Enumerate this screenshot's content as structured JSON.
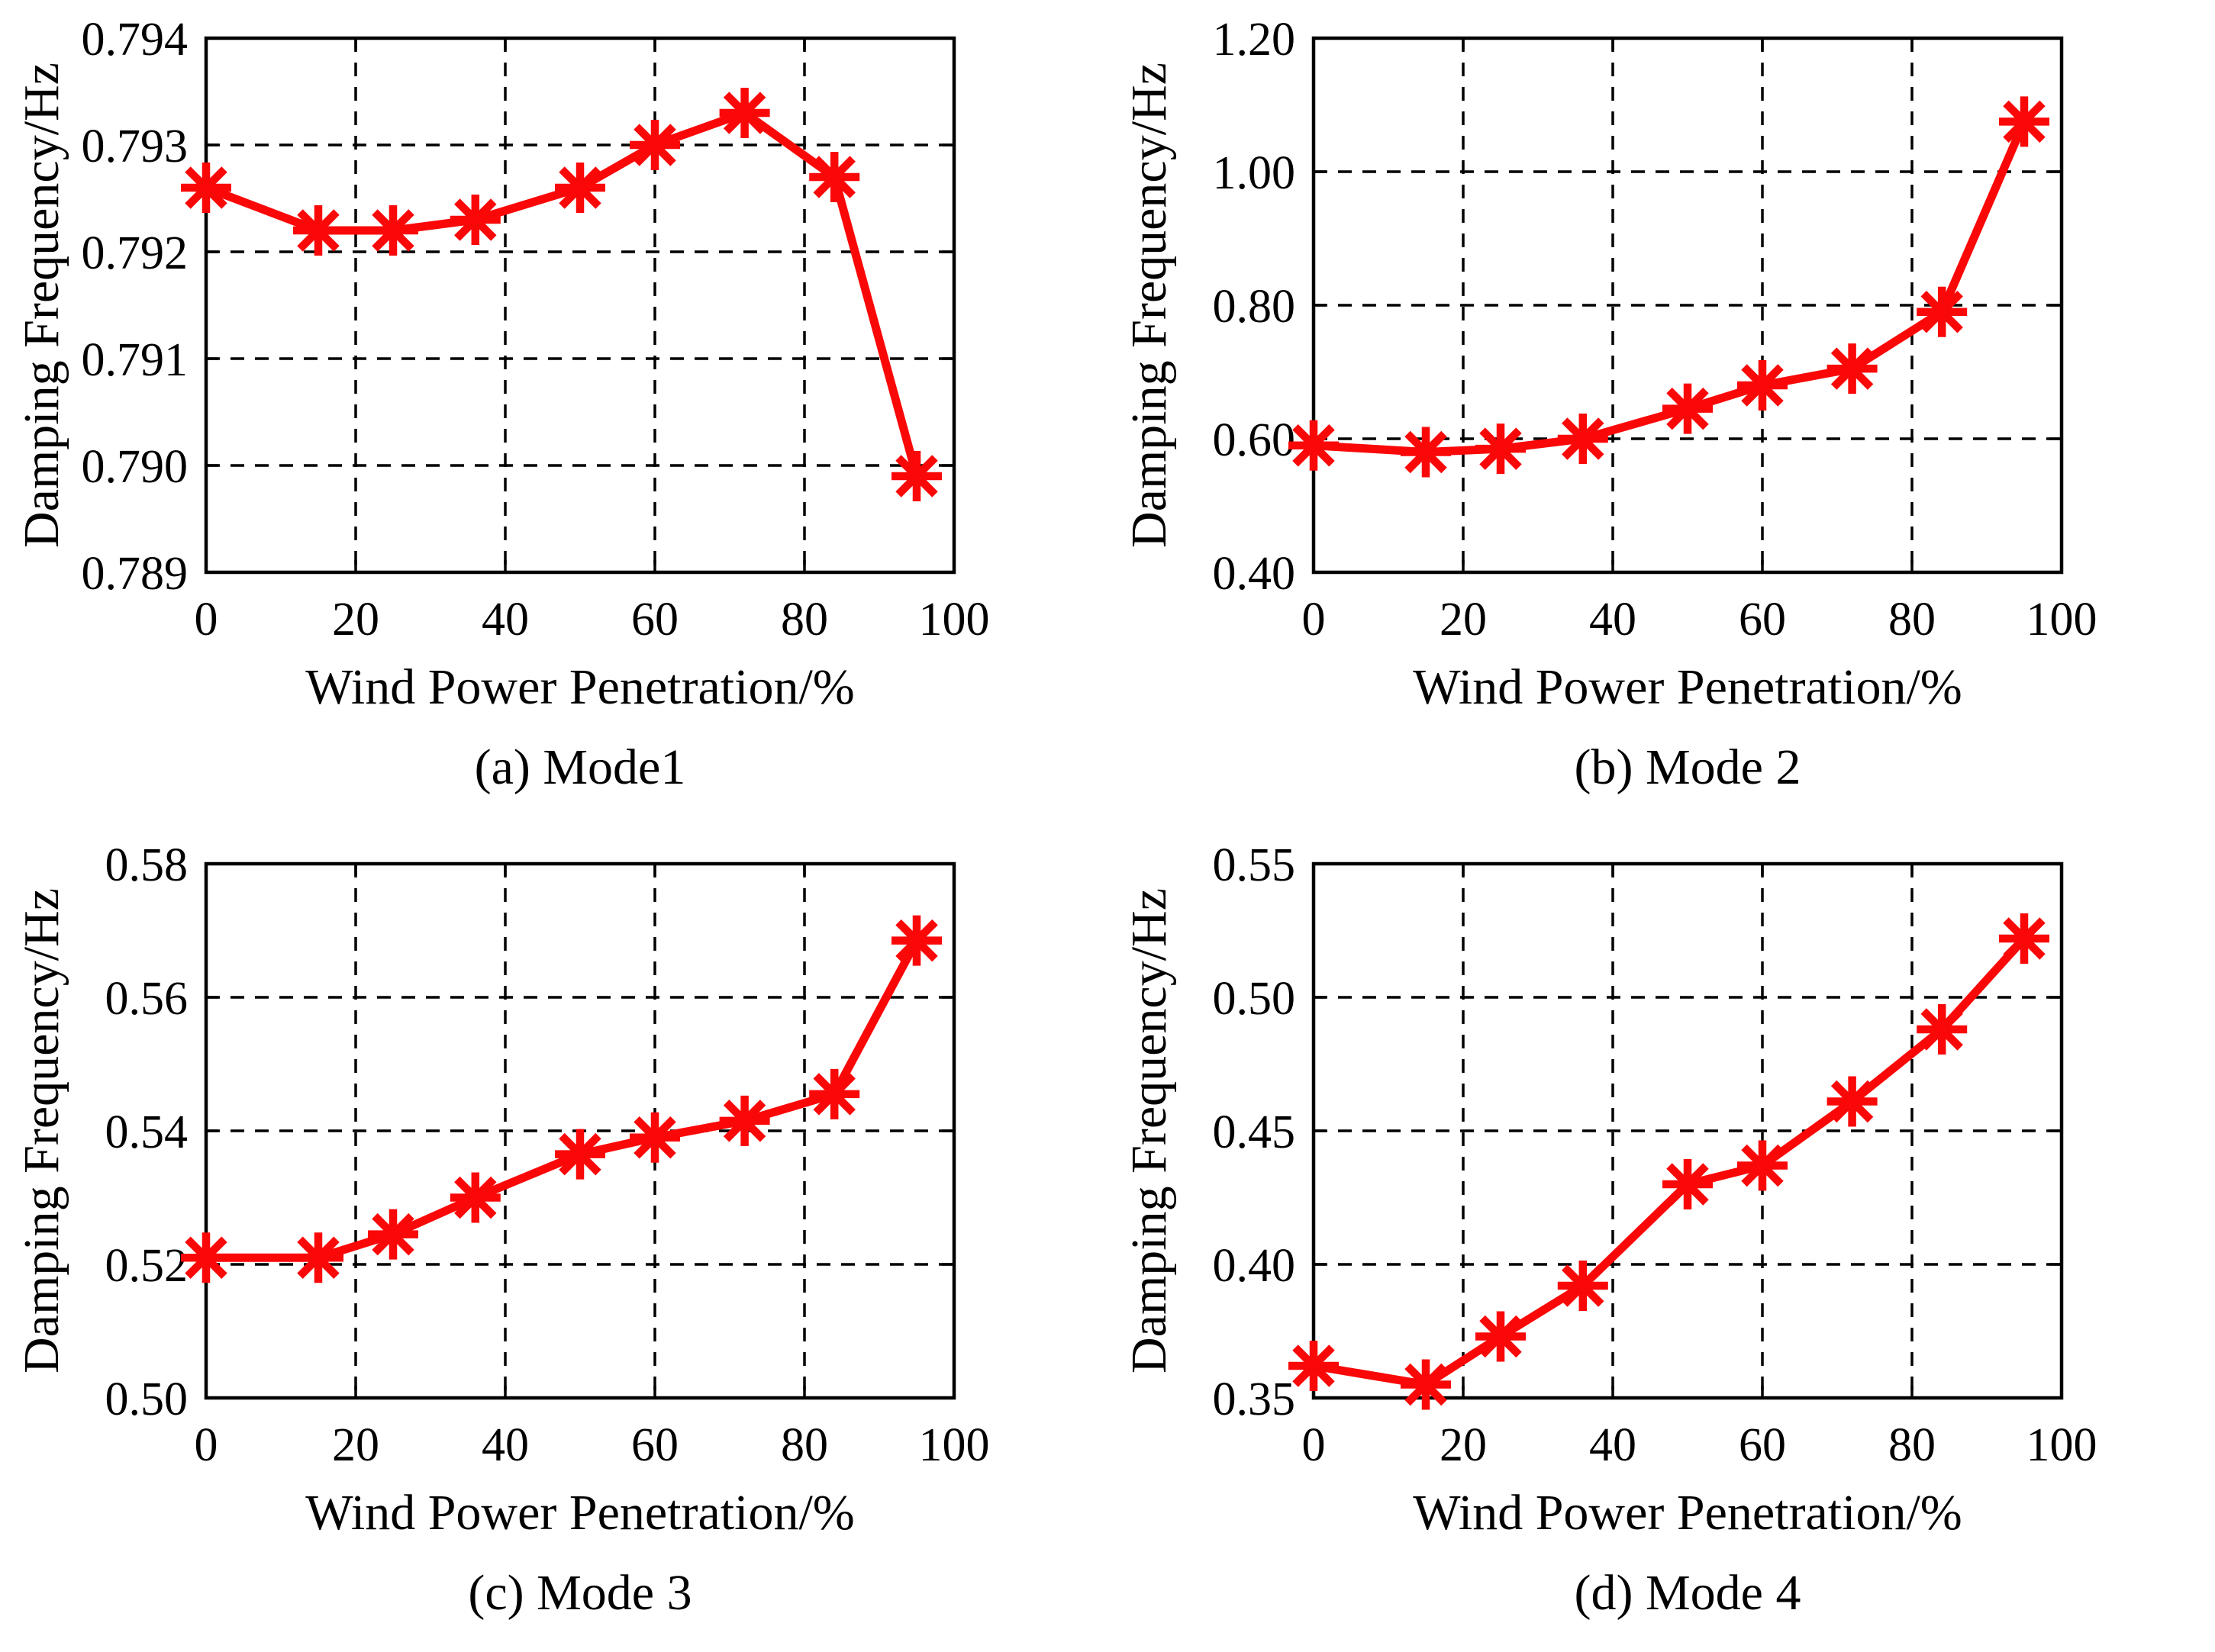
{
  "figure": {
    "background": "#ffffff",
    "text_color": "#000000",
    "series_color": "#fa0708",
    "grid_color": "#000000",
    "marker_glyph": "asterisk"
  },
  "chart_data": [
    {
      "type": "line",
      "title": "(a) Mode1",
      "xlabel": "Wind Power Penetration/%",
      "ylabel": "Damping Frequency/Hz",
      "x": [
        0,
        15,
        25,
        36,
        50,
        60,
        72,
        84,
        95
      ],
      "y": [
        0.7926,
        0.7922,
        0.7922,
        0.7923,
        0.7926,
        0.793,
        0.7933,
        0.7927,
        0.7899
      ],
      "xlim": [
        0,
        100
      ],
      "ylim": [
        0.789,
        0.794
      ],
      "xticks": [
        0,
        20,
        40,
        60,
        80,
        100
      ],
      "xtick_labels": [
        "0",
        "20",
        "40",
        "60",
        "80",
        "100"
      ],
      "yticks": [
        0.789,
        0.79,
        0.791,
        0.792,
        0.793,
        0.794
      ],
      "ytick_labels": [
        "0.789",
        "0.790",
        "0.791",
        "0.792",
        "0.793",
        "0.794"
      ],
      "grid": true,
      "legend": "none",
      "marker": "asterisk"
    },
    {
      "type": "line",
      "title": "(b) Mode 2",
      "xlabel": "Wind Power Penetration/%",
      "ylabel": "Damping Frequency/Hz",
      "x": [
        0,
        15,
        25,
        36,
        50,
        60,
        72,
        84,
        95
      ],
      "y": [
        0.59,
        0.58,
        0.585,
        0.6,
        0.645,
        0.68,
        0.705,
        0.79,
        1.075
      ],
      "xlim": [
        0,
        100
      ],
      "ylim": [
        0.4,
        1.2
      ],
      "xticks": [
        0,
        20,
        40,
        60,
        80,
        100
      ],
      "xtick_labels": [
        "0",
        "20",
        "40",
        "60",
        "80",
        "100"
      ],
      "yticks": [
        0.4,
        0.6,
        0.8,
        1.0,
        1.2
      ],
      "ytick_labels": [
        "0.40",
        "0.60",
        "0.80",
        "1.00",
        "1.20"
      ],
      "grid": true,
      "legend": "none",
      "marker": "asterisk"
    },
    {
      "type": "line",
      "title": "(c) Mode 3",
      "xlabel": "Wind Power Penetration/%",
      "ylabel": "Damping Frequency/Hz",
      "x": [
        0,
        15,
        25,
        36,
        50,
        60,
        72,
        84,
        95
      ],
      "y": [
        0.521,
        0.521,
        0.5245,
        0.53,
        0.5365,
        0.539,
        0.5415,
        0.5455,
        0.5685
      ],
      "xlim": [
        0,
        100
      ],
      "ylim": [
        0.5,
        0.58
      ],
      "xticks": [
        0,
        20,
        40,
        60,
        80,
        100
      ],
      "xtick_labels": [
        "0",
        "20",
        "40",
        "60",
        "80",
        "100"
      ],
      "yticks": [
        0.5,
        0.52,
        0.54,
        0.56,
        0.58
      ],
      "ytick_labels": [
        "0.50",
        "0.52",
        "0.54",
        "0.56",
        "0.58"
      ],
      "grid": true,
      "legend": "none",
      "marker": "asterisk"
    },
    {
      "type": "line",
      "title": "(d) Mode 4",
      "xlabel": "Wind Power Penetration/%",
      "ylabel": "Damping Frequency/Hz",
      "x": [
        0,
        15,
        25,
        36,
        50,
        60,
        72,
        84,
        95
      ],
      "y": [
        0.362,
        0.355,
        0.373,
        0.392,
        0.43,
        0.437,
        0.461,
        0.488,
        0.522
      ],
      "xlim": [
        0,
        100
      ],
      "ylim": [
        0.35,
        0.55
      ],
      "xticks": [
        0,
        20,
        40,
        60,
        80,
        100
      ],
      "xtick_labels": [
        "0",
        "20",
        "40",
        "60",
        "80",
        "100"
      ],
      "yticks": [
        0.35,
        0.4,
        0.45,
        0.5,
        0.55
      ],
      "ytick_labels": [
        "0.35",
        "0.40",
        "0.45",
        "0.50",
        "0.55"
      ],
      "grid": true,
      "legend": "none",
      "marker": "asterisk"
    }
  ]
}
